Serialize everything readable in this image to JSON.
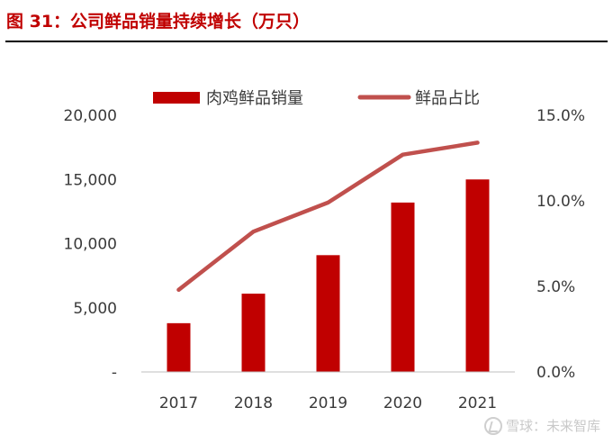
{
  "figure": {
    "title": "图 31：公司鲜品销量持续增长（万只）"
  },
  "watermark": {
    "icon": "snowball-logo-icon",
    "text": "雪球：未来智库"
  },
  "colors": {
    "title": "#c00000",
    "bar": "#c00000",
    "line": "#c0504d",
    "axis_text": "#3a3a3a"
  },
  "chart_data": {
    "type": "bar",
    "categories": [
      "2017",
      "2018",
      "2019",
      "2020",
      "2021"
    ],
    "series": [
      {
        "name": "肉鸡鲜品销量",
        "type": "bar",
        "axis": "left",
        "values": [
          3800,
          6100,
          9100,
          13200,
          15000
        ]
      },
      {
        "name": "鲜品占比",
        "type": "line",
        "axis": "right",
        "values": [
          4.8,
          8.2,
          9.9,
          12.7,
          13.4
        ],
        "unit": "%"
      }
    ],
    "y_left": {
      "min": 0,
      "max": 20000,
      "ticks": [
        0,
        5000,
        10000,
        15000,
        20000
      ],
      "tick_labels": [
        "-",
        "5,000",
        "10,000",
        "15,000",
        "20,000"
      ]
    },
    "y_right": {
      "min": 0,
      "max": 15,
      "ticks": [
        0,
        5,
        10,
        15
      ],
      "tick_labels": [
        "0.0%",
        "5.0%",
        "10.0%",
        "15.0%"
      ]
    },
    "legend": {
      "position": "top"
    },
    "grid": false
  }
}
